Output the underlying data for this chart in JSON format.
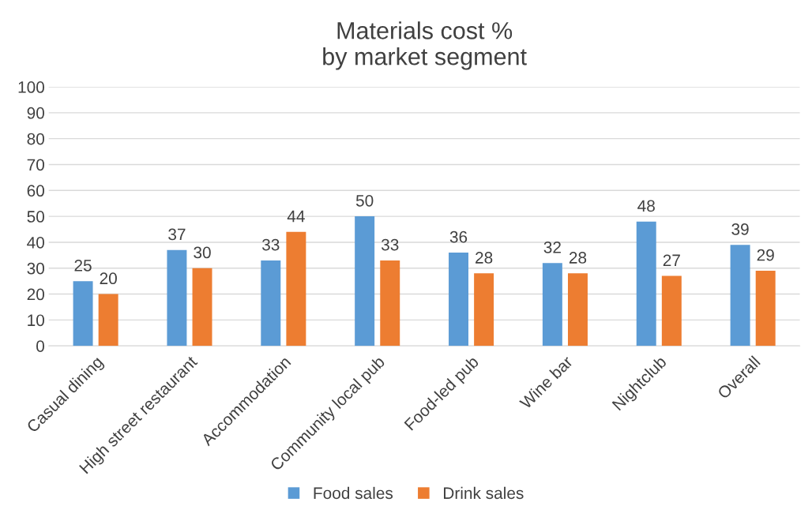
{
  "chart_data": {
    "type": "bar",
    "title": "Materials cost %\nby market segment",
    "categories": [
      "Casual dining",
      "High street restaurant",
      "Accommodation",
      "Community local pub",
      "Food-led pub",
      "Wine bar",
      "Nightclub",
      "Overall"
    ],
    "series": [
      {
        "name": "Food sales",
        "color": "#5b9bd5",
        "values": [
          25,
          37,
          33,
          50,
          36,
          32,
          48,
          39
        ]
      },
      {
        "name": "Drink sales",
        "color": "#ed7d31",
        "values": [
          20,
          30,
          44,
          33,
          28,
          28,
          27,
          29
        ]
      }
    ],
    "ylim": [
      0,
      100
    ],
    "yticks": [
      0,
      10,
      20,
      30,
      40,
      50,
      60,
      70,
      80,
      90,
      100
    ],
    "grid": "y",
    "legend": "bottom",
    "data_labels": true
  }
}
